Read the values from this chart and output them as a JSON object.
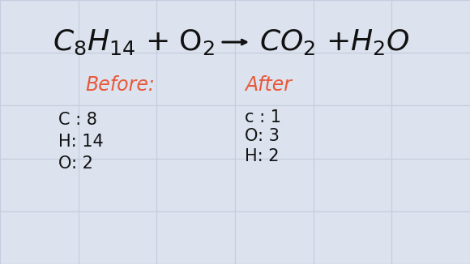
{
  "background_color": "#dce3ef",
  "grid_color": "#c5cede",
  "text_color_black": "#111111",
  "text_color_red": "#e8583a",
  "before_label": "Before:",
  "after_label": "After",
  "before_items": [
    "C : 8",
    "H: 14",
    "O: 2"
  ],
  "after_items": [
    "c : 1",
    "O: 3",
    "H: 2"
  ],
  "figsize": [
    5.8,
    3.26
  ],
  "dpi": 100
}
